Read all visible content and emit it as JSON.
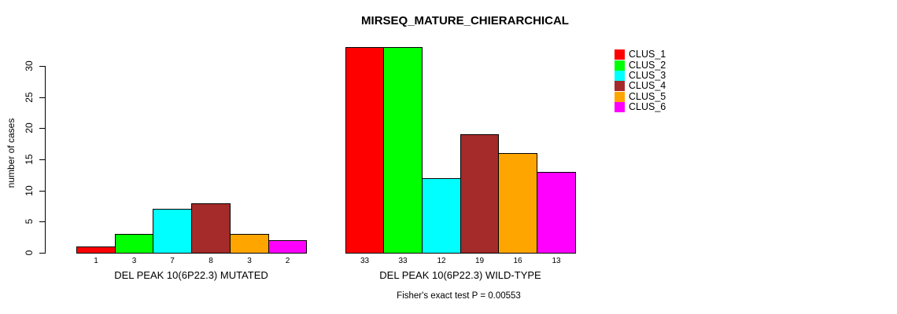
{
  "chart_data": {
    "type": "bar",
    "title": "MIRSEQ_MATURE_CHIERARCHICAL",
    "ylabel": "number of cases",
    "subtitle": "Fisher's exact test P = 0.00553",
    "ylim": [
      0,
      33
    ],
    "yticks": [
      0,
      5,
      10,
      15,
      20,
      25,
      30
    ],
    "grid": false,
    "legend_position": "right-inside",
    "series": [
      {
        "name": "CLUS_1",
        "color": "#FF0000"
      },
      {
        "name": "CLUS_2",
        "color": "#00FF00"
      },
      {
        "name": "CLUS_3",
        "color": "#00FFFF"
      },
      {
        "name": "CLUS_4",
        "color": "#A52A2A"
      },
      {
        "name": "CLUS_5",
        "color": "#FFA500"
      },
      {
        "name": "CLUS_6",
        "color": "#FF00FF"
      }
    ],
    "groups": [
      {
        "label": "DEL PEAK 10(6P22.3) MUTATED",
        "values": [
          1,
          3,
          7,
          8,
          3,
          2
        ]
      },
      {
        "label": "DEL PEAK 10(6P22.3) WILD-TYPE",
        "values": [
          33,
          33,
          12,
          19,
          16,
          13
        ]
      }
    ]
  }
}
